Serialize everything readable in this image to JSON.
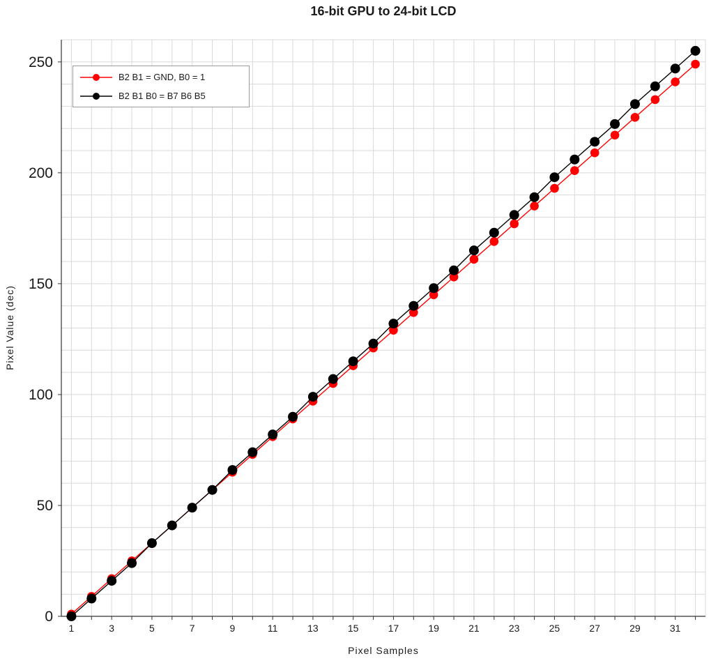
{
  "title": "16-bit GPU to 24-bit LCD",
  "chart_data": {
    "type": "scatter",
    "xlabel": "Pixel Samples",
    "ylabel": "Pixel Value  (dec)",
    "x": [
      1,
      2,
      3,
      4,
      5,
      6,
      7,
      8,
      9,
      10,
      11,
      12,
      13,
      14,
      15,
      16,
      17,
      18,
      19,
      20,
      21,
      22,
      23,
      24,
      25,
      26,
      27,
      28,
      29,
      30,
      31,
      32
    ],
    "series": [
      {
        "name": "B2 B1 = GND, B0 = 1",
        "color": "#FF0000",
        "values": [
          1,
          9,
          17,
          25,
          33,
          41,
          49,
          57,
          65,
          73,
          81,
          89,
          97,
          105,
          113,
          121,
          129,
          137,
          145,
          153,
          161,
          169,
          177,
          185,
          193,
          201,
          209,
          217,
          225,
          233,
          241,
          249
        ]
      },
      {
        "name": "B2 B1 B0 = B7 B6 B5",
        "color": "#000000",
        "values": [
          0,
          8,
          16,
          24,
          33,
          41,
          49,
          57,
          66,
          74,
          82,
          90,
          99,
          107,
          115,
          123,
          132,
          140,
          148,
          156,
          165,
          173,
          181,
          189,
          198,
          206,
          214,
          222,
          231,
          239,
          247,
          255
        ]
      }
    ],
    "xlim": [
      0.5,
      32.5
    ],
    "ylim": [
      0,
      260
    ],
    "x_ticks": [
      1,
      3,
      5,
      7,
      9,
      11,
      13,
      15,
      17,
      19,
      21,
      23,
      25,
      27,
      29,
      31
    ],
    "y_ticks": [
      0,
      50,
      100,
      150,
      200,
      250
    ],
    "grid": {
      "x_minor_step": 1,
      "y_minor_step": 10,
      "color": "#d9d9d9"
    },
    "legend_position": "top-left",
    "axis_color": "#333333",
    "tick_label_color": "#1a1a1a"
  }
}
